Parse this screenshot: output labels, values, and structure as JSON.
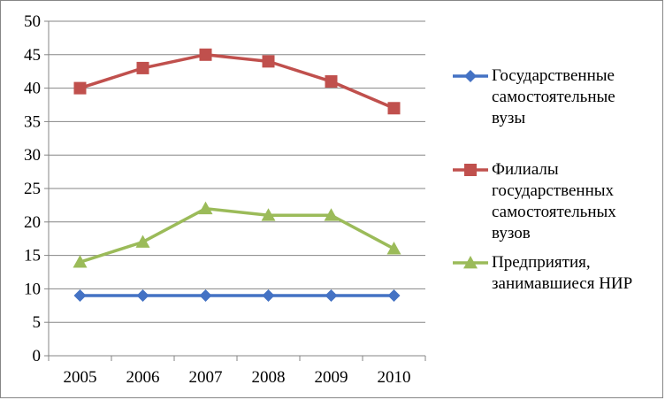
{
  "chart_data": {
    "type": "line",
    "categories": [
      "2005",
      "2006",
      "2007",
      "2008",
      "2009",
      "2010"
    ],
    "ylim": [
      0,
      50
    ],
    "ytick_step": 5,
    "yticks": [
      "0",
      "5",
      "10",
      "15",
      "20",
      "25",
      "30",
      "35",
      "40",
      "45",
      "50"
    ],
    "grid": "horizontal",
    "legend_position": "right",
    "series": [
      {
        "name": "Государственные самостоятельные вузы",
        "label_lines": [
          "Государственные",
          "самостоятельные",
          "вузы"
        ],
        "values": [
          9,
          9,
          9,
          9,
          9,
          9
        ],
        "color": "#4472C4",
        "marker": "diamond"
      },
      {
        "name": "Филиалы государственных самостоятельных вузов",
        "label_lines": [
          "Филиалы",
          "государственных",
          "самостоятельных",
          "вузов"
        ],
        "values": [
          40,
          43,
          45,
          44,
          41,
          37
        ],
        "color": "#C0504D",
        "marker": "square"
      },
      {
        "name": "Предприятия, занимавшиеся НИР",
        "label_lines": [
          "Предприятия,",
          "занимавшиеся НИР"
        ],
        "values": [
          14,
          17,
          22,
          21,
          21,
          16
        ],
        "color": "#9BBB59",
        "marker": "triangle"
      }
    ]
  }
}
